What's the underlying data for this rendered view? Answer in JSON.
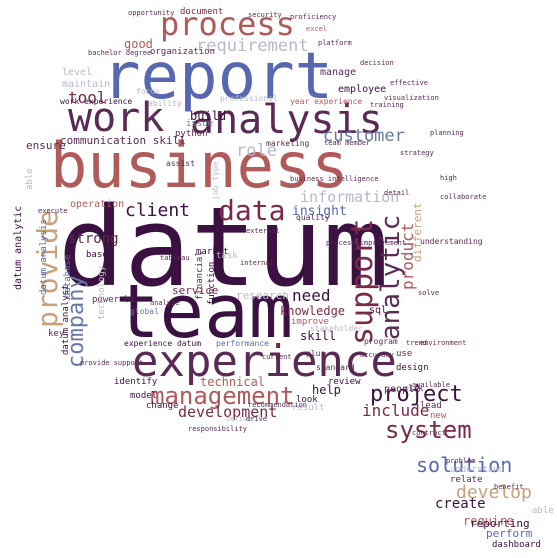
{
  "palette": {
    "dark": "#3a1140",
    "plum": "#5a2a55",
    "maroon": "#7a2a48",
    "rose": "#b05a5a",
    "tan": "#c8a07a",
    "blue": "#5868b0",
    "slate": "#6a78a8",
    "grey": "#b8b8c8"
  },
  "words": {
    "datum": "datum",
    "business": "business",
    "team": "team",
    "report": "report",
    "experience": "experience",
    "work": "work",
    "analysis": "analysis",
    "process": "process",
    "data": "data",
    "management": "management",
    "support": "support",
    "provide": "provide",
    "analytic": "analytic",
    "system": "system",
    "solution": "solution",
    "client": "client",
    "project": "project",
    "develop": "develop",
    "requirement": "requirement",
    "customer": "customer",
    "role": "role",
    "tool": "tool",
    "company": "company",
    "need": "need",
    "include": "include",
    "create": "create",
    "development": "development",
    "information": "information",
    "product": "product",
    "insight": "insight",
    "strong": "strong",
    "knowledge": "knowledge",
    "communication_skill": "communication skill",
    "build": "build",
    "good": "good",
    "skill": "skill",
    "technical": "technical",
    "require": "require",
    "reporting": "reporting",
    "service": "service",
    "research": "research",
    "help": "help",
    "sql": "sql",
    "model": "model",
    "ensure": "ensure",
    "datum_analytic": "datum analytic",
    "datum_analyst": "datum analyst",
    "datum_analysis": "datum analysis",
    "operation": "operation",
    "manage": "manage",
    "employee": "employee",
    "people": "people",
    "level": "level",
    "maintain": "maintain",
    "organization": "organization",
    "document": "document",
    "work_experience": "work experience",
    "year_experience": "year experience",
    "professional": "professional",
    "python": "python",
    "issue": "issue",
    "market": "market",
    "function": "function",
    "financial": "financial",
    "task": "task",
    "base": "base",
    "database": "database",
    "key": "key",
    "power_bi": "power bi",
    "identify": "identify",
    "change": "change",
    "result": "result",
    "look": "look",
    "review": "review",
    "improve": "improve",
    "use": "use",
    "design": "design",
    "relate": "relate",
    "lead": "lead",
    "new": "new",
    "understand": "understand",
    "perform": "perform",
    "dashboard": "dashboard",
    "program": "program",
    "performance": "performance",
    "experience_datum": "experience datum",
    "technology": "technology",
    "job_type": "job type",
    "plus": "plus",
    "standard": "standard",
    "global": "global",
    "focus": "focus",
    "assist": "assist",
    "quality": "quality",
    "different": "different",
    "marketing": "marketing",
    "able": "able",
    "ability": "ability",
    "stakeholder": "stakeholder",
    "understanding": "understanding",
    "risk": "risk",
    "available": "available",
    "bachelor_degree": "bachelor degree",
    "training": "training",
    "platform": "platform",
    "recommendation": "recommendation",
    "deliver": "deliver",
    "drive": "drive",
    "analyze": "analyze",
    "opportunity": "opportunity",
    "provide_support": "provide support",
    "team_member": "team member",
    "high": "high",
    "process_improvement": "process improvement",
    "security": "security",
    "proficiency": "proficiency",
    "excel": "excel",
    "decision": "decision",
    "tableau": "tableau",
    "visualization": "visualization",
    "business_intelligence": "business intelligence",
    "environment": "environment",
    "responsibility": "responsibility",
    "collaborate": "collaborate",
    "contract": "contract",
    "strategy": "strategy",
    "detail": "detail",
    "problem": "problem",
    "benefit": "benefit",
    "planning": "planning",
    "solve": "solve",
    "effective": "effective",
    "internal": "internal",
    "external": "external",
    "current": "current",
    "trend": "trend",
    "accuracy": "accuracy",
    "execute": "execute"
  }
}
